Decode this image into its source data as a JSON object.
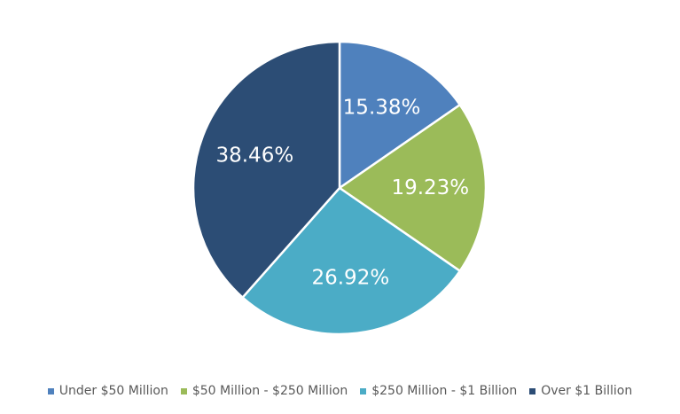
{
  "chart_data": {
    "type": "pie",
    "start_angle_deg": 0,
    "direction": "clockwise",
    "slices": [
      {
        "name": "Under $50 Million",
        "value": 15.38,
        "label": "15.38%",
        "color": "#4f81bd"
      },
      {
        "name": "$50 Million - $250 Million",
        "value": 19.23,
        "label": "19.23%",
        "color": "#9bbb59"
      },
      {
        "name": "$250 Million - $1 Billion",
        "value": 26.92,
        "label": "26.92%",
        "color": "#4bacc6"
      },
      {
        "name": "Over $1 Billion",
        "value": 38.46,
        "label": "38.46%",
        "color": "#2c4d75"
      }
    ],
    "legend_position": "bottom"
  }
}
